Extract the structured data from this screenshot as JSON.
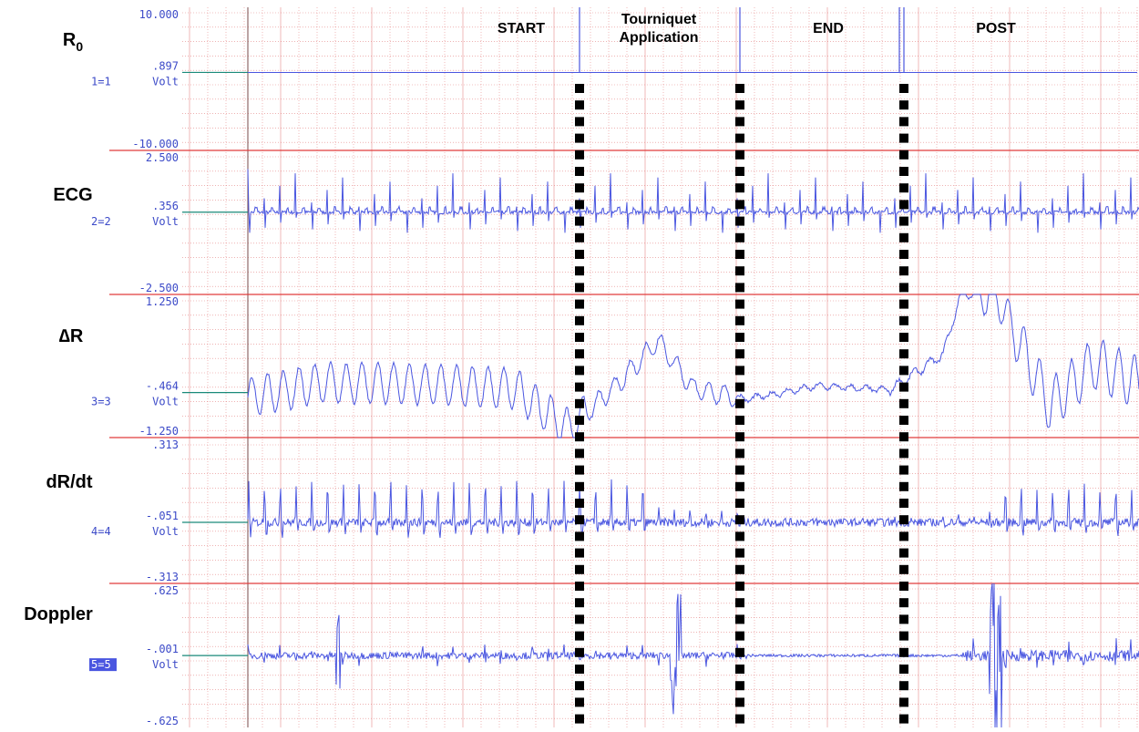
{
  "channels": [
    {
      "name": "R",
      "name_sub": "0",
      "top_value": "10.000",
      "mid_value": ".897",
      "bottom_value": "-10.000",
      "id_label": "1=1",
      "unit": "Volt",
      "selected": false
    },
    {
      "name": "ECG",
      "top_value": "2.500",
      "mid_value": ".356",
      "bottom_value": "-2.500",
      "id_label": "2=2",
      "unit": "Volt",
      "selected": false
    },
    {
      "name": "∆R",
      "top_value": "1.250",
      "mid_value": "-.464",
      "bottom_value": "-1.250",
      "id_label": "3=3",
      "unit": "Volt",
      "selected": false
    },
    {
      "name": "dR/dt",
      "top_value": ".313",
      "mid_value": "-.051",
      "bottom_value": "-.313",
      "id_label": "4=4",
      "unit": "Volt",
      "selected": false
    },
    {
      "name": "Doppler",
      "top_value": ".625",
      "mid_value": "-.001",
      "bottom_value": "-.625",
      "id_label": "5=5",
      "unit": "Volt",
      "selected": true
    }
  ],
  "phases": [
    "START",
    "Tourniquet\nApplication",
    "END",
    "POST"
  ],
  "colors": {
    "trace": "#4a56e0",
    "separator": "#e03c3c",
    "grid": "#e07070",
    "axis_text": "#3c4ac8",
    "label": "#000000",
    "marker": "#000000",
    "ref_line": "#1a8a7a",
    "highlight": "#4a56e0"
  },
  "chart_data": {
    "type": "line",
    "x_axis_label": "",
    "grid": true,
    "series": [
      {
        "name": "R0",
        "ylim": [
          -10.0,
          10.0
        ],
        "reference": 0.897,
        "pattern": "flat",
        "values_at_phase_markers": [
          0.897,
          0.897,
          0.897,
          0.897
        ]
      },
      {
        "name": "ECG",
        "ylim": [
          -2.5,
          2.5
        ],
        "reference": 0.356,
        "pattern": "periodic-spikes",
        "peak_range": [
          1.5,
          2.0
        ]
      },
      {
        "name": "∆R",
        "ylim": [
          -1.25,
          1.25
        ],
        "reference": -0.464,
        "pattern": "oscillating",
        "x": [
          0,
          0.08,
          0.16,
          0.24,
          0.3,
          0.36,
          0.42,
          0.46,
          0.5,
          0.56,
          0.64,
          0.72,
          0.78,
          0.8,
          0.84,
          0.9,
          0.95,
          1.0
        ],
        "y": [
          -0.55,
          -0.3,
          -0.3,
          -0.35,
          -0.4,
          -1.1,
          -0.25,
          0.45,
          -0.4,
          -0.58,
          -0.35,
          -0.42,
          0.2,
          1.25,
          1.25,
          -0.7,
          0.05,
          -0.3
        ]
      },
      {
        "name": "dR/dt",
        "ylim": [
          -0.313,
          0.313
        ],
        "reference": -0.051,
        "pattern": "periodic-pulses",
        "peak_range": [
          0.15,
          0.22
        ]
      },
      {
        "name": "Doppler",
        "ylim": [
          -0.625,
          0.625
        ],
        "reference": -0.001,
        "pattern": "noise-bursts",
        "peak_range": [
          -0.6,
          0.6
        ]
      }
    ]
  }
}
